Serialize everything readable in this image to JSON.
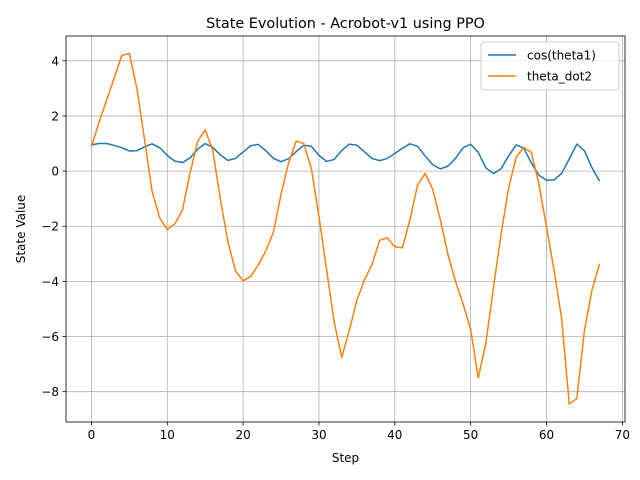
{
  "chart_data": {
    "type": "line",
    "title": "State Evolution - Acrobot-v1 using PPO",
    "xlabel": "Step",
    "ylabel": "State Value",
    "xlim": [
      -3.35,
      70.35
    ],
    "ylim": [
      -9.1,
      4.9
    ],
    "xticks": [
      0,
      10,
      20,
      30,
      40,
      50,
      60,
      70
    ],
    "yticks": [
      -8,
      -6,
      -4,
      -2,
      0,
      2,
      4
    ],
    "grid": true,
    "legend_position": "top-right",
    "x": [
      0,
      1,
      2,
      3,
      4,
      5,
      6,
      7,
      8,
      9,
      10,
      11,
      12,
      13,
      14,
      15,
      16,
      17,
      18,
      19,
      20,
      21,
      22,
      23,
      24,
      25,
      26,
      27,
      28,
      29,
      30,
      31,
      32,
      33,
      34,
      35,
      36,
      37,
      38,
      39,
      40,
      41,
      42,
      43,
      44,
      45,
      46,
      47,
      48,
      49,
      50,
      51,
      52,
      53,
      54,
      55,
      56,
      57,
      58,
      59,
      60,
      61,
      62,
      63,
      64,
      65,
      66,
      67
    ],
    "series": [
      {
        "name": "cos(theta1)",
        "color": "#1f77b4",
        "values": [
          0.95,
          1.0,
          1.0,
          0.93,
          0.85,
          0.73,
          0.74,
          0.88,
          0.99,
          0.85,
          0.57,
          0.36,
          0.31,
          0.48,
          0.79,
          1.0,
          0.86,
          0.59,
          0.39,
          0.46,
          0.69,
          0.92,
          0.97,
          0.74,
          0.46,
          0.34,
          0.45,
          0.71,
          0.94,
          0.9,
          0.57,
          0.35,
          0.42,
          0.75,
          0.98,
          0.94,
          0.7,
          0.46,
          0.38,
          0.46,
          0.64,
          0.83,
          0.99,
          0.9,
          0.55,
          0.23,
          0.08,
          0.18,
          0.46,
          0.85,
          0.97,
          0.68,
          0.12,
          -0.09,
          0.08,
          0.55,
          0.95,
          0.83,
          0.3,
          -0.15,
          -0.33,
          -0.32,
          -0.08,
          0.44,
          0.98,
          0.74,
          0.12,
          -0.37
        ]
      },
      {
        "name": "theta_dot2",
        "color": "#ff7f0e",
        "values": [
          0.88,
          1.77,
          2.57,
          3.37,
          4.19,
          4.27,
          2.99,
          1.16,
          -0.73,
          -1.7,
          -2.12,
          -1.91,
          -1.41,
          -0.08,
          1.07,
          1.5,
          0.75,
          -1.02,
          -2.57,
          -3.62,
          -3.98,
          -3.82,
          -3.41,
          -2.89,
          -2.21,
          -0.84,
          0.3,
          1.09,
          1.0,
          0.09,
          -1.65,
          -3.55,
          -5.46,
          -6.76,
          -5.78,
          -4.68,
          -3.95,
          -3.38,
          -2.51,
          -2.42,
          -2.75,
          -2.78,
          -1.76,
          -0.51,
          -0.08,
          -0.66,
          -1.76,
          -3.02,
          -4.0,
          -4.82,
          -5.74,
          -7.5,
          -6.25,
          -4.23,
          -2.31,
          -0.62,
          0.5,
          0.86,
          0.68,
          -0.47,
          -2.02,
          -3.6,
          -5.36,
          -8.45,
          -8.25,
          -5.78,
          -4.31,
          -3.36
        ]
      }
    ]
  }
}
